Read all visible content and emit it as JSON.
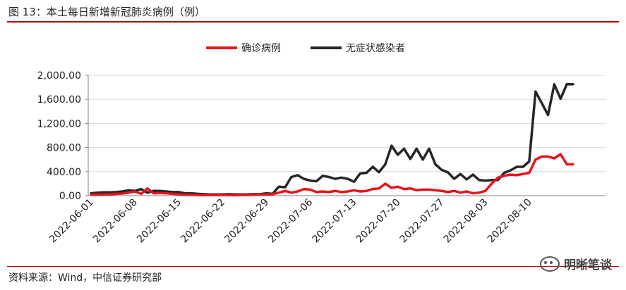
{
  "header": {
    "title": "图 13：本土每日新增新冠肺炎病例（例）"
  },
  "footer": {
    "source": "资料来源：Wind，中信证券研究部",
    "watermark": "明晰笔谈"
  },
  "colors": {
    "confirmed": "#e8141b",
    "asymptomatic": "#262626",
    "rule": "#c00000",
    "grid": "#d9d9d9"
  },
  "chart_data": {
    "type": "line",
    "title": "",
    "xlabel": "",
    "ylabel": "",
    "ylim": [
      0,
      2000
    ],
    "yticks": [
      0,
      400,
      800,
      1200,
      1600,
      2000
    ],
    "ytick_labels": [
      "0.00",
      "400.00",
      "800.00",
      "1,200.00",
      "1,600.00",
      "2,000.00"
    ],
    "grid": true,
    "legend": "top-center",
    "x": [
      "2022-06-01",
      "2022-06-02",
      "2022-06-03",
      "2022-06-04",
      "2022-06-05",
      "2022-06-06",
      "2022-06-07",
      "2022-06-08",
      "2022-06-09",
      "2022-06-10",
      "2022-06-11",
      "2022-06-12",
      "2022-06-13",
      "2022-06-14",
      "2022-06-15",
      "2022-06-16",
      "2022-06-17",
      "2022-06-18",
      "2022-06-19",
      "2022-06-20",
      "2022-06-21",
      "2022-06-22",
      "2022-06-23",
      "2022-06-24",
      "2022-06-25",
      "2022-06-26",
      "2022-06-27",
      "2022-06-28",
      "2022-06-29",
      "2022-06-30",
      "2022-07-01",
      "2022-07-02",
      "2022-07-03",
      "2022-07-04",
      "2022-07-05",
      "2022-07-06",
      "2022-07-07",
      "2022-07-08",
      "2022-07-09",
      "2022-07-10",
      "2022-07-11",
      "2022-07-12",
      "2022-07-13",
      "2022-07-14",
      "2022-07-15",
      "2022-07-16",
      "2022-07-17",
      "2022-07-18",
      "2022-07-19",
      "2022-07-20",
      "2022-07-21",
      "2022-07-22",
      "2022-07-23",
      "2022-07-24",
      "2022-07-25",
      "2022-07-26",
      "2022-07-27",
      "2022-07-28",
      "2022-07-29",
      "2022-07-30",
      "2022-07-31",
      "2022-08-01",
      "2022-08-02",
      "2022-08-03",
      "2022-08-04",
      "2022-08-05",
      "2022-08-06",
      "2022-08-07",
      "2022-08-08",
      "2022-08-09",
      "2022-08-10",
      "2022-08-11",
      "2022-08-12",
      "2022-08-13",
      "2022-08-14",
      "2022-08-15",
      "2022-08-16",
      "2022-08-17"
    ],
    "xtick_labels": [
      "2022-06-01",
      "2022-06-08",
      "2022-06-15",
      "2022-06-22",
      "2022-06-29",
      "2022-07-06",
      "2022-07-13",
      "2022-07-20",
      "2022-07-27",
      "2022-08-03",
      "2022-08-10"
    ],
    "series": [
      {
        "name": "确诊病例",
        "color": "#e8141b",
        "values": [
          15,
          18,
          20,
          22,
          30,
          35,
          50,
          70,
          30,
          120,
          40,
          45,
          40,
          30,
          25,
          15,
          15,
          10,
          8,
          10,
          10,
          12,
          10,
          8,
          10,
          12,
          15,
          20,
          18,
          25,
          50,
          80,
          50,
          70,
          110,
          100,
          60,
          70,
          60,
          80,
          60,
          70,
          90,
          70,
          80,
          110,
          120,
          200,
          130,
          150,
          110,
          120,
          90,
          100,
          100,
          90,
          80,
          60,
          80,
          50,
          70,
          40,
          50,
          80,
          200,
          300,
          330,
          350,
          340,
          360,
          380,
          600,
          650,
          650,
          620,
          690,
          520,
          520
        ]
      },
      {
        "name": "无症状感染者",
        "color": "#262626",
        "values": [
          40,
          50,
          55,
          55,
          60,
          70,
          90,
          80,
          110,
          50,
          80,
          80,
          70,
          60,
          60,
          40,
          40,
          30,
          25,
          20,
          20,
          20,
          25,
          20,
          20,
          20,
          25,
          25,
          40,
          30,
          150,
          140,
          310,
          340,
          280,
          250,
          240,
          330,
          310,
          280,
          300,
          280,
          230,
          370,
          380,
          480,
          390,
          520,
          830,
          680,
          780,
          610,
          780,
          600,
          780,
          520,
          430,
          390,
          280,
          360,
          270,
          350,
          260,
          250,
          260,
          260,
          380,
          420,
          480,
          480,
          570,
          1730,
          1540,
          1340,
          1850,
          1610,
          1850,
          1850
        ]
      }
    ]
  }
}
